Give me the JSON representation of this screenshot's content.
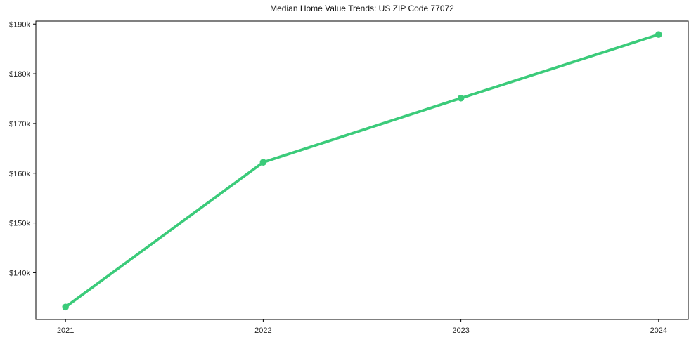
{
  "chart_data": {
    "type": "line",
    "title": "Median Home Value Trends: US ZIP Code 77072",
    "xlabel": "",
    "ylabel": "",
    "categories": [
      "2021",
      "2022",
      "2023",
      "2024"
    ],
    "values": [
      133100,
      162200,
      175100,
      187900
    ],
    "y_ticks": [
      {
        "value": 190000,
        "label": "$190k"
      },
      {
        "value": 180000,
        "label": "$180k"
      },
      {
        "value": 170000,
        "label": "$170k"
      },
      {
        "value": 160000,
        "label": "$160k"
      },
      {
        "value": 150000,
        "label": "$150k"
      },
      {
        "value": 140000,
        "label": "$140k"
      }
    ],
    "xlim": [
      2020.85,
      2024.15
    ],
    "ylim": [
      130600,
      190600
    ],
    "grid": false,
    "legend_position": "none",
    "marker": "circle",
    "line_color": "#3bcb7a",
    "axis_color": "#000000",
    "tick_text_color": "#262626",
    "title_color": "#111111",
    "background_color": "#ffffff"
  }
}
